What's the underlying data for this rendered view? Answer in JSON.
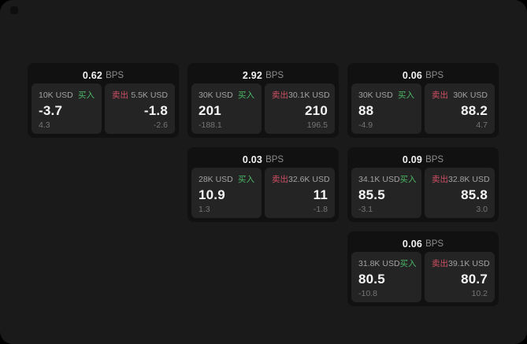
{
  "colors": {
    "background": "#000000",
    "surface": "#1a1a1a",
    "card": "#111111",
    "panel": "#242424",
    "buy_green": "#4ab866",
    "sell_red": "#cd4f63"
  },
  "cards": [
    {
      "bps_value": "0.62",
      "bps_label": "BPS",
      "buy": {
        "amount": "10K USD",
        "side": "买入",
        "price": "-3.7",
        "change": "4.3"
      },
      "sell": {
        "side": "卖出",
        "amount": "5.5K USD",
        "price": "-1.8",
        "change": "-2.6"
      }
    },
    {
      "bps_value": "2.92",
      "bps_label": "BPS",
      "buy": {
        "amount": "30K USD",
        "side": "买入",
        "price": "201",
        "change": "-188.1"
      },
      "sell": {
        "side": "卖出",
        "amount": "30.1K USD",
        "price": "210",
        "change": "196.5"
      }
    },
    {
      "bps_value": "0.06",
      "bps_label": "BPS",
      "buy": {
        "amount": "30K USD",
        "side": "买入",
        "price": "88",
        "change": "-4.9"
      },
      "sell": {
        "side": "卖出",
        "amount": "30K USD",
        "price": "88.2",
        "change": "4.7"
      }
    },
    {
      "bps_value": "0.03",
      "bps_label": "BPS",
      "buy": {
        "amount": "28K USD",
        "side": "买入",
        "price": "10.9",
        "change": "1.3"
      },
      "sell": {
        "side": "卖出",
        "amount": "32.6K USD",
        "price": "11",
        "change": "-1.8"
      }
    },
    {
      "bps_value": "0.09",
      "bps_label": "BPS",
      "buy": {
        "amount": "34.1K USD",
        "side": "买入",
        "price": "85.5",
        "change": "-3.1"
      },
      "sell": {
        "side": "卖出",
        "amount": "32.8K USD",
        "price": "85.8",
        "change": "3.0"
      }
    },
    {
      "bps_value": "0.06",
      "bps_label": "BPS",
      "buy": {
        "amount": "31.8K USD",
        "side": "买入",
        "price": "80.5",
        "change": "-10.8"
      },
      "sell": {
        "side": "卖出",
        "amount": "39.1K USD",
        "price": "80.7",
        "change": "10.2"
      }
    }
  ]
}
